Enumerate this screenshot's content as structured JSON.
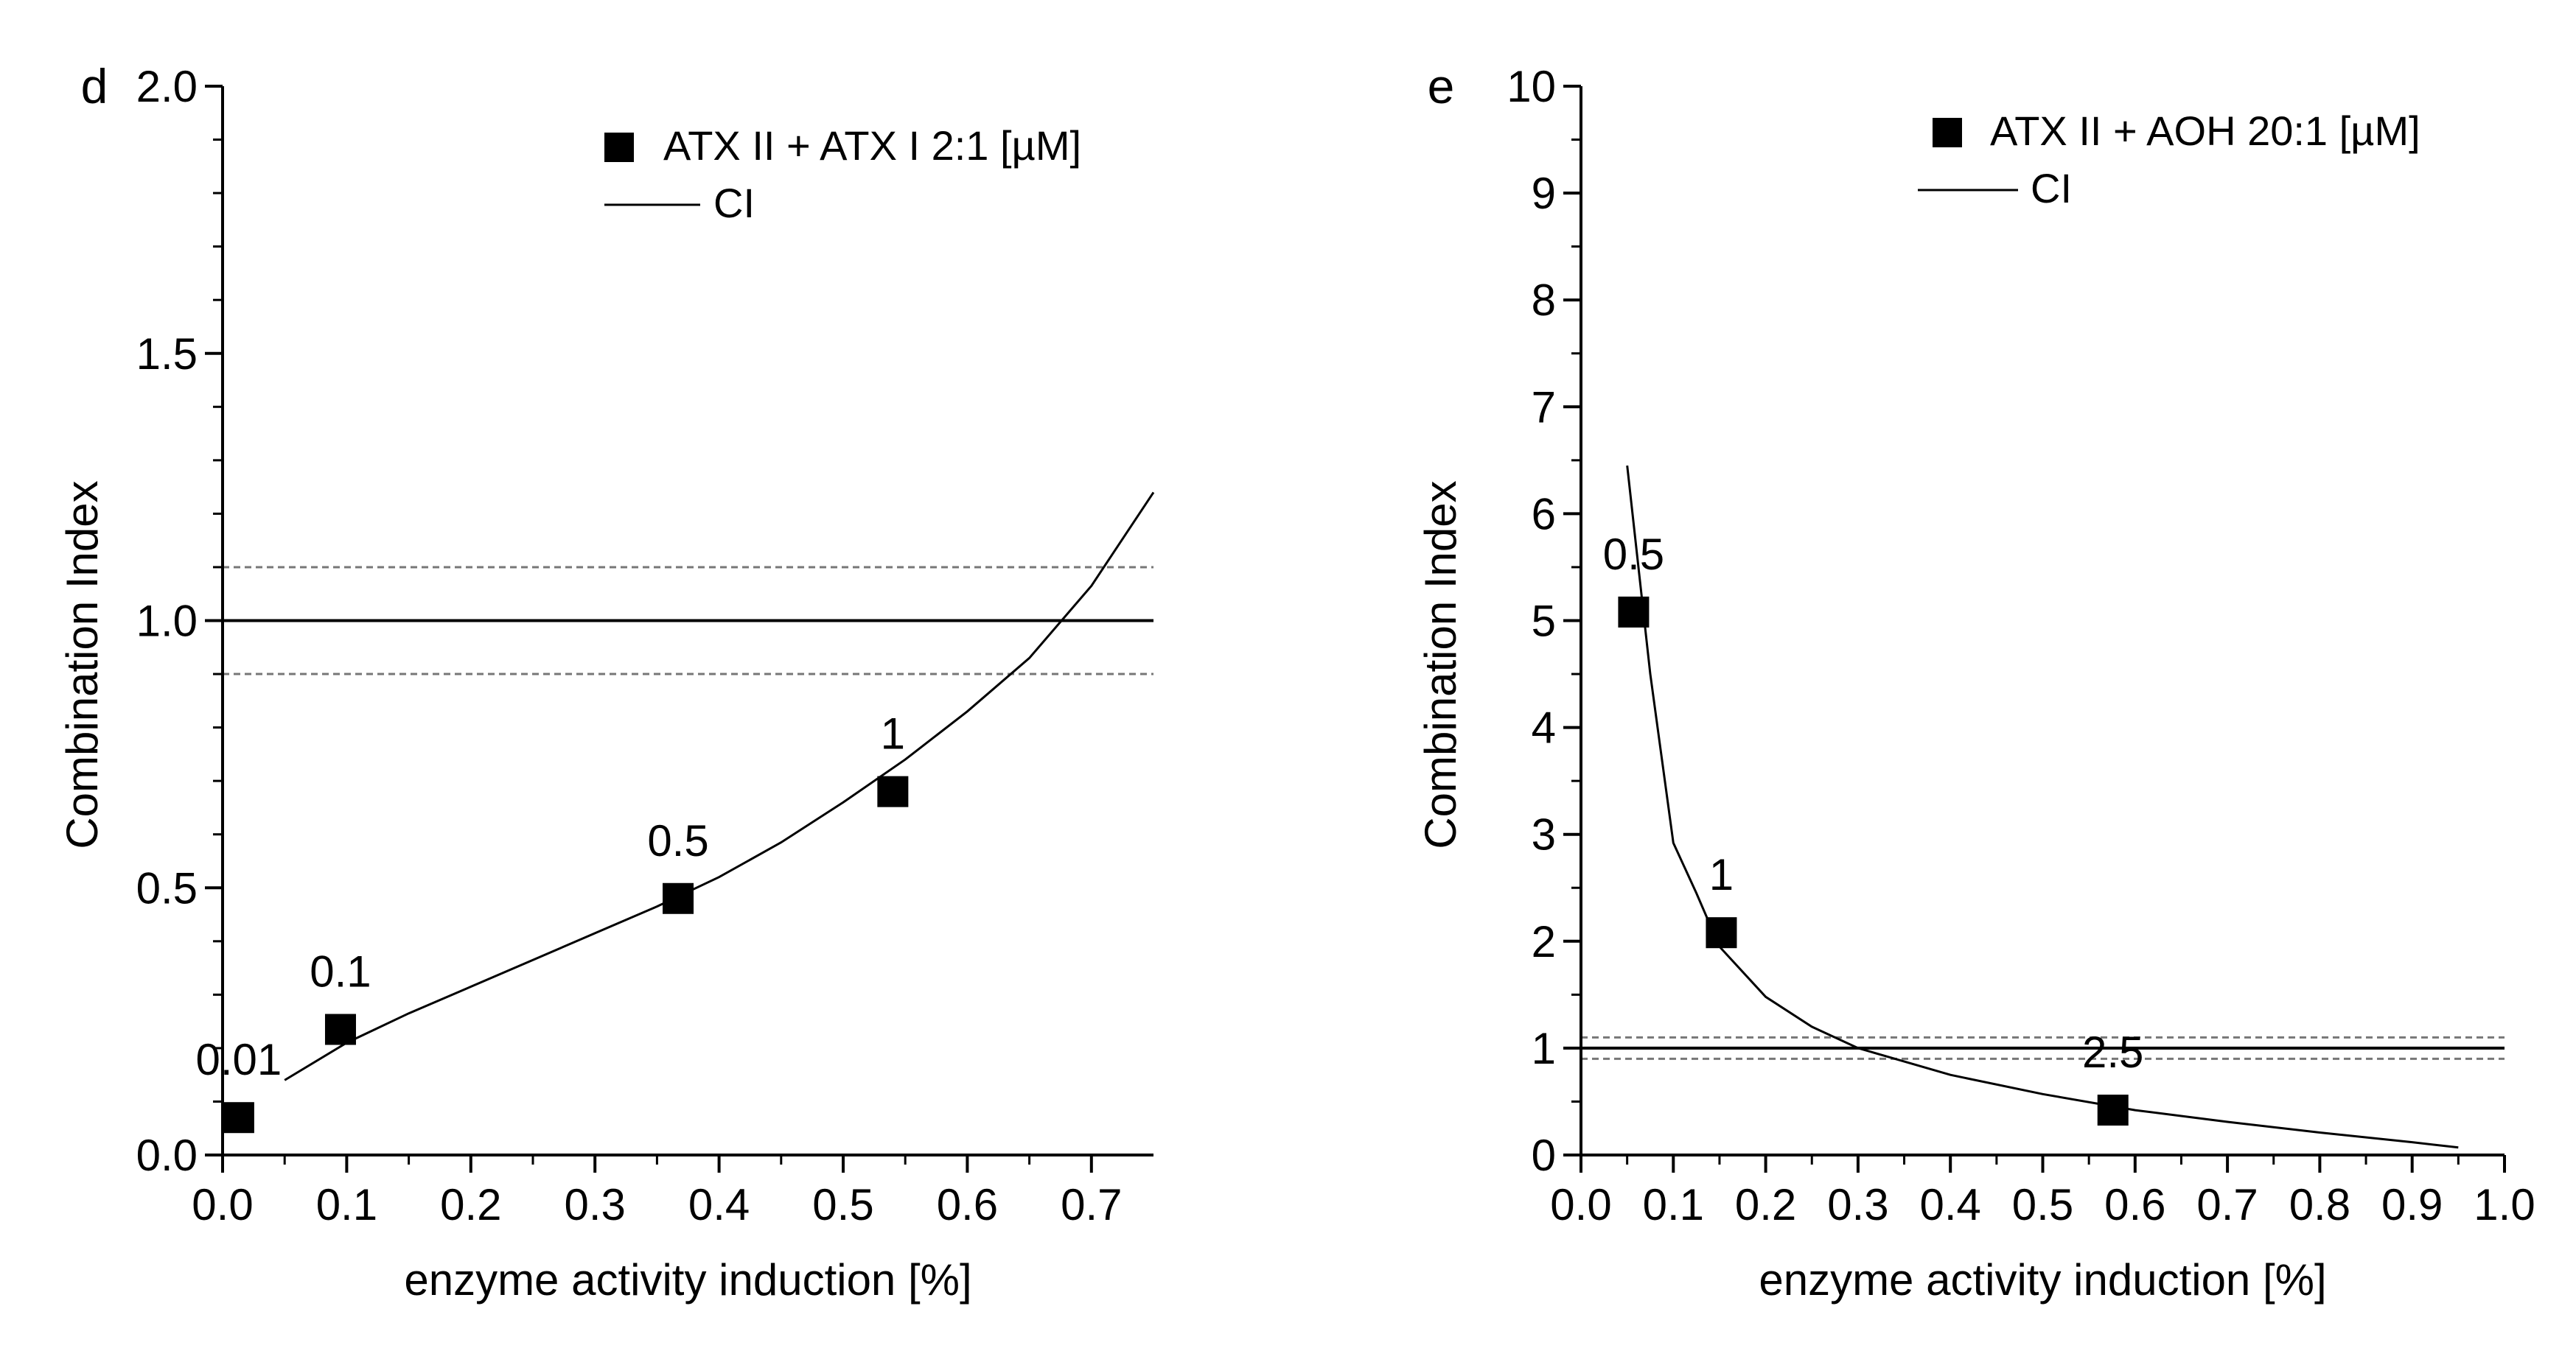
{
  "colors": {
    "axis": "#000000",
    "marker": "#000000",
    "ci_line": "#000000",
    "ref_line": "#000000",
    "band_line": "#777777"
  },
  "chart_data": [
    {
      "type": "scatter",
      "panel_label": "d",
      "xlabel": "enzyme activity induction [%]",
      "ylabel": "Combination Index",
      "xlim": [
        0.0,
        0.75
      ],
      "ylim": [
        0.0,
        2.0
      ],
      "x_ticks": [
        "0.0",
        "0.1",
        "0.2",
        "0.3",
        "0.4",
        "0.5",
        "0.6",
        "0.7"
      ],
      "y_ticks": [
        "0.0",
        "0.5",
        "1.0",
        "1.5",
        "2.0"
      ],
      "legend": {
        "marker_label": "ATX II + ATX I 2:1 [µM]",
        "line_label": "CI",
        "placement": "top-right"
      },
      "reference_line": 1.0,
      "band": [
        0.9,
        1.1
      ],
      "points": [
        {
          "x": 0.013,
          "y": 0.07,
          "label": "0.01"
        },
        {
          "x": 0.095,
          "y": 0.235,
          "label": "0.1"
        },
        {
          "x": 0.367,
          "y": 0.48,
          "label": "0.5"
        },
        {
          "x": 0.54,
          "y": 0.68,
          "label": "1"
        }
      ],
      "ci_curve": {
        "x": [
          0.05,
          0.1,
          0.15,
          0.2,
          0.25,
          0.3,
          0.35,
          0.4,
          0.45,
          0.5,
          0.55,
          0.6,
          0.65,
          0.7,
          0.75
        ],
        "y": [
          0.14,
          0.21,
          0.265,
          0.315,
          0.365,
          0.415,
          0.465,
          0.52,
          0.585,
          0.66,
          0.74,
          0.83,
          0.93,
          1.065,
          1.24
        ]
      }
    },
    {
      "type": "scatter",
      "panel_label": "e",
      "xlabel": "enzyme activity induction [%]",
      "ylabel": "Combination Index",
      "xlim": [
        0.0,
        1.0
      ],
      "ylim": [
        0,
        10
      ],
      "x_ticks": [
        "0.0",
        "0.1",
        "0.2",
        "0.3",
        "0.4",
        "0.5",
        "0.6",
        "0.7",
        "0.8",
        "0.9",
        "1.0"
      ],
      "y_ticks": [
        "0",
        "1",
        "2",
        "3",
        "4",
        "5",
        "6",
        "7",
        "8",
        "9",
        "10"
      ],
      "legend": {
        "marker_label": "ATX II + AOH 20:1 [µM]",
        "line_label": "CI",
        "placement": "top-right"
      },
      "reference_line": 1.0,
      "band": [
        0.9,
        1.1
      ],
      "points": [
        {
          "x": 0.057,
          "y": 5.08,
          "label": "0.5"
        },
        {
          "x": 0.152,
          "y": 2.08,
          "label": "1"
        },
        {
          "x": 0.576,
          "y": 0.42,
          "label": "2.5"
        }
      ],
      "ci_curve": {
        "x": [
          0.05,
          0.075,
          0.1,
          0.125,
          0.15,
          0.2,
          0.25,
          0.3,
          0.4,
          0.5,
          0.6,
          0.7,
          0.8,
          0.9,
          0.95
        ],
        "y": [
          6.45,
          4.5,
          2.92,
          2.45,
          1.95,
          1.48,
          1.2,
          1.0,
          0.75,
          0.57,
          0.42,
          0.31,
          0.21,
          0.12,
          0.07
        ]
      }
    }
  ]
}
